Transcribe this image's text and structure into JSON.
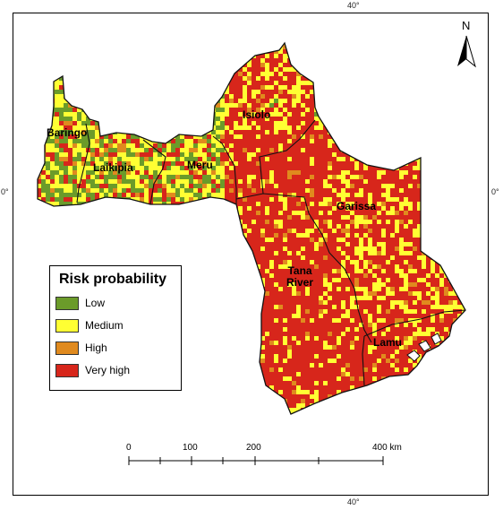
{
  "graticule": {
    "top_label": "40°",
    "bottom_label": "40°",
    "left_label": "0°",
    "right_label": "0°"
  },
  "north_arrow": {
    "label": "N"
  },
  "regions": [
    {
      "id": "baringo",
      "name": "Baringo"
    },
    {
      "id": "laikipia",
      "name": "Laikipia"
    },
    {
      "id": "meru",
      "name": "Meru"
    },
    {
      "id": "isiolo",
      "name": "Isiolo"
    },
    {
      "id": "garissa",
      "name": "Garissa"
    },
    {
      "id": "tana-river",
      "name": "Tana\nRiver"
    },
    {
      "id": "lamu",
      "name": "Lamu"
    }
  ],
  "legend": {
    "title": "Risk probability",
    "items": [
      {
        "label": "Low",
        "color": "#6b9b2a"
      },
      {
        "label": "Medium",
        "color": "#ffff33"
      },
      {
        "label": "High",
        "color": "#e08a1e"
      },
      {
        "label": "Very high",
        "color": "#d7261b"
      }
    ]
  },
  "scale_bar": {
    "labels": [
      "0",
      "100",
      "200",
      "400 km"
    ]
  },
  "colors": {
    "low": "#6b9b2a",
    "medium": "#ffff33",
    "high": "#e08a1e",
    "very_high": "#d7261b"
  }
}
